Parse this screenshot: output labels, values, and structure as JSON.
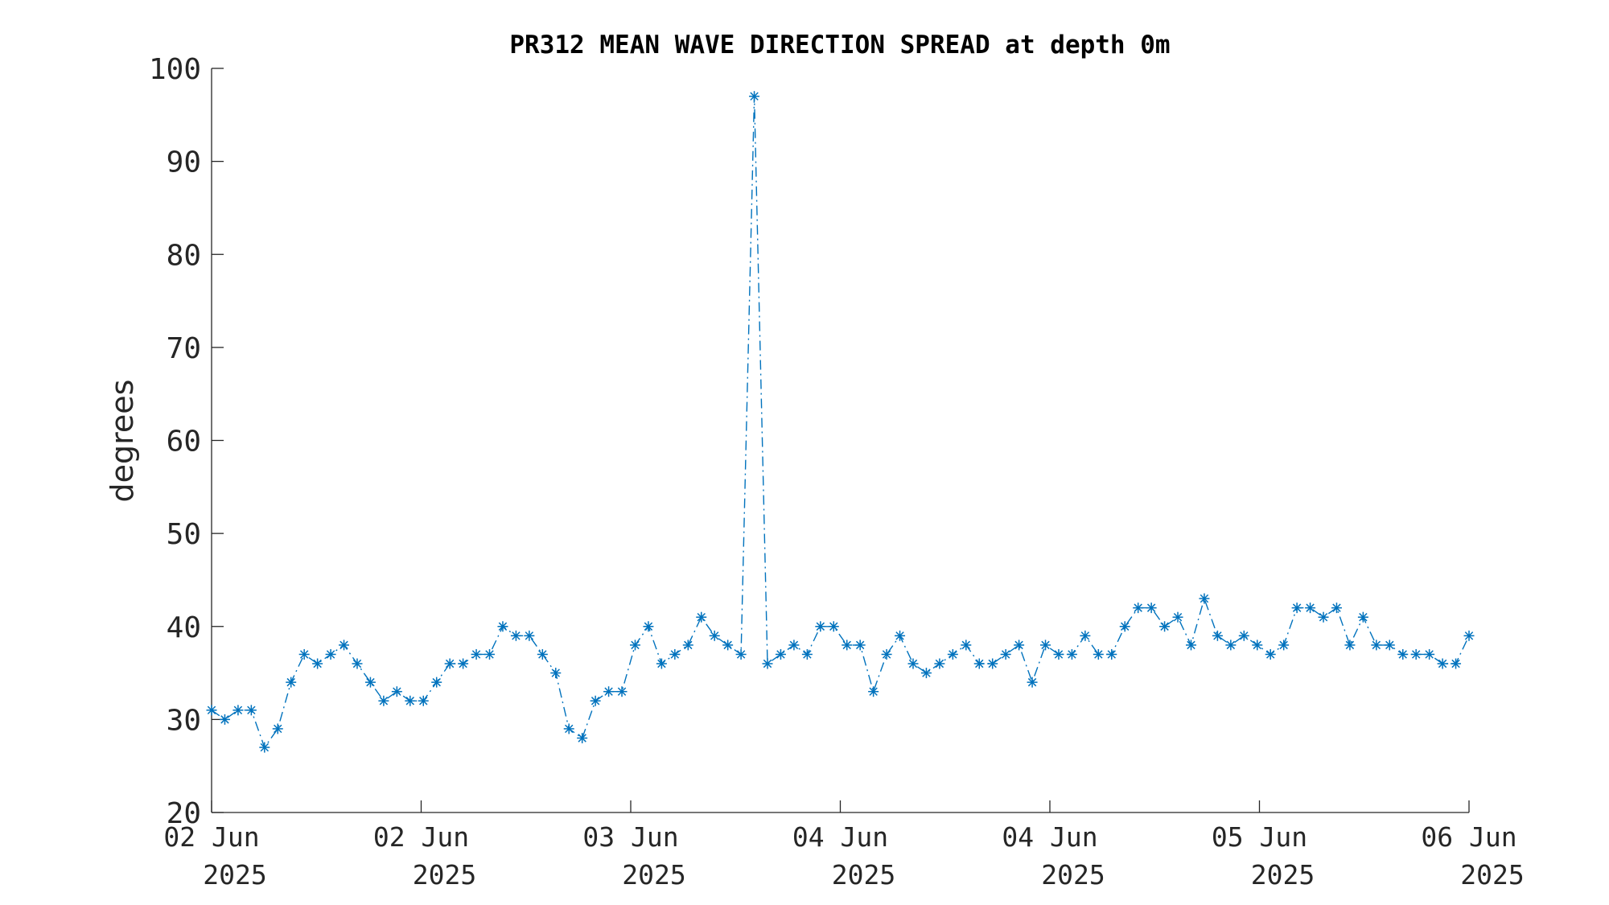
{
  "chart_data": {
    "type": "line",
    "title": "PR312 MEAN WAVE DIRECTION SPREAD at depth 0m",
    "xlabel": "",
    "ylabel": "degrees",
    "ylim": [
      20,
      100
    ],
    "yticks": [
      20,
      30,
      40,
      50,
      60,
      70,
      80,
      90,
      100
    ],
    "xticks": [
      {
        "line1": "02 Jun",
        "line2": "2025"
      },
      {
        "line1": "02 Jun",
        "line2": "2025"
      },
      {
        "line1": "03 Jun",
        "line2": "2025"
      },
      {
        "line1": "04 Jun",
        "line2": "2025"
      },
      {
        "line1": "04 Jun",
        "line2": "2025"
      },
      {
        "line1": "05 Jun",
        "line2": "2025"
      },
      {
        "line1": "06 Jun",
        "line2": "2025"
      }
    ],
    "grid": false,
    "line_style": "dash-dot",
    "marker": "asterisk",
    "series_color": "#0072BD",
    "series": [
      {
        "values": [
          31,
          30,
          31,
          31,
          27,
          29,
          34,
          37,
          36,
          37,
          38,
          36,
          34,
          32,
          33,
          32,
          32,
          34,
          36,
          36,
          37,
          37,
          40,
          39,
          39,
          37,
          35,
          29,
          28,
          32,
          33,
          33,
          38,
          40,
          36,
          37,
          38,
          41,
          39,
          38,
          37,
          97,
          36,
          37,
          38,
          37,
          40,
          40,
          38,
          38,
          33,
          37,
          39,
          36,
          35,
          36,
          37,
          38,
          36,
          36,
          37,
          38,
          34,
          38,
          37,
          37,
          39,
          37,
          37,
          40,
          42,
          42,
          40,
          41,
          38,
          43,
          39,
          38,
          39,
          38,
          37,
          38,
          42,
          42,
          41,
          42,
          38,
          41,
          38,
          38,
          37,
          37,
          37,
          36,
          36,
          39
        ]
      }
    ]
  }
}
